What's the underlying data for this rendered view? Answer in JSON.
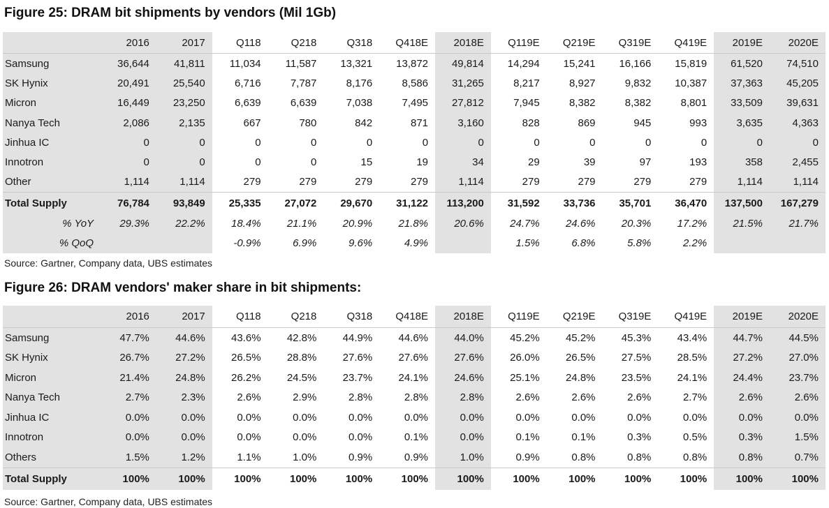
{
  "fig25": {
    "title": "Figure 25: DRAM bit shipments by vendors (Mil 1Gb)",
    "source": "Source: Gartner, Company data, UBS estimates",
    "headers": [
      "",
      "2016",
      "2017",
      "Q118",
      "Q218",
      "Q318",
      "Q418E",
      "2018E",
      "Q119E",
      "Q219E",
      "Q319E",
      "Q419E",
      "2019E",
      "2020E"
    ],
    "rows": [
      [
        "Samsung",
        "36,644",
        "41,811",
        "11,034",
        "11,587",
        "13,321",
        "13,872",
        "49,814",
        "14,294",
        "15,241",
        "16,166",
        "15,819",
        "61,520",
        "74,510"
      ],
      [
        "SK Hynix",
        "20,491",
        "25,540",
        "6,716",
        "7,787",
        "8,176",
        "8,586",
        "31,265",
        "8,217",
        "8,927",
        "9,832",
        "10,387",
        "37,363",
        "45,205"
      ],
      [
        "Micron",
        "16,449",
        "23,250",
        "6,639",
        "6,639",
        "7,038",
        "7,495",
        "27,812",
        "7,945",
        "8,382",
        "8,382",
        "8,801",
        "33,509",
        "39,631"
      ],
      [
        "Nanya Tech",
        "2,086",
        "2,135",
        "667",
        "780",
        "842",
        "871",
        "3,160",
        "828",
        "869",
        "945",
        "993",
        "3,635",
        "4,363"
      ],
      [
        "Jinhua IC",
        "0",
        "0",
        "0",
        "0",
        "0",
        "0",
        "0",
        "0",
        "0",
        "0",
        "0",
        "0",
        "0"
      ],
      [
        "Innotron",
        "0",
        "0",
        "0",
        "0",
        "15",
        "19",
        "34",
        "29",
        "39",
        "97",
        "193",
        "358",
        "2,455"
      ],
      [
        "Other",
        "1,114",
        "1,114",
        "279",
        "279",
        "279",
        "279",
        "1,114",
        "279",
        "279",
        "279",
        "279",
        "1,114",
        "1,114"
      ]
    ],
    "total": [
      "Total Supply",
      "76,784",
      "93,849",
      "25,335",
      "27,072",
      "29,670",
      "31,122",
      "113,200",
      "31,592",
      "33,736",
      "35,701",
      "36,470",
      "137,500",
      "167,279"
    ],
    "yoy": [
      "% YoY",
      "29.3%",
      "22.2%",
      "18.4%",
      "21.1%",
      "20.9%",
      "21.8%",
      "20.6%",
      "24.7%",
      "24.6%",
      "20.3%",
      "17.2%",
      "21.5%",
      "21.7%"
    ],
    "qoq": [
      "% QoQ",
      "",
      "",
      "-0.9%",
      "6.9%",
      "9.6%",
      "4.9%",
      "",
      "1.5%",
      "6.8%",
      "5.8%",
      "2.2%",
      "",
      ""
    ]
  },
  "fig26": {
    "title": "Figure 26: DRAM vendors' maker share in bit shipments:",
    "source": "Source: Gartner, Company data, UBS estimates",
    "headers": [
      "",
      "2016",
      "2017",
      "Q118",
      "Q218",
      "Q318",
      "Q418E",
      "2018E",
      "Q119E",
      "Q219E",
      "Q319E",
      "Q419E",
      "2019E",
      "2020E"
    ],
    "rows": [
      [
        "Samsung",
        "47.7%",
        "44.6%",
        "43.6%",
        "42.8%",
        "44.9%",
        "44.6%",
        "44.0%",
        "45.2%",
        "45.2%",
        "45.3%",
        "43.4%",
        "44.7%",
        "44.5%"
      ],
      [
        "SK Hynix",
        "26.7%",
        "27.2%",
        "26.5%",
        "28.8%",
        "27.6%",
        "27.6%",
        "27.6%",
        "26.0%",
        "26.5%",
        "27.5%",
        "28.5%",
        "27.2%",
        "27.0%"
      ],
      [
        "Micron",
        "21.4%",
        "24.8%",
        "26.2%",
        "24.5%",
        "23.7%",
        "24.1%",
        "24.6%",
        "25.1%",
        "24.8%",
        "23.5%",
        "24.1%",
        "24.4%",
        "23.7%"
      ],
      [
        "Nanya Tech",
        "2.7%",
        "2.3%",
        "2.6%",
        "2.9%",
        "2.8%",
        "2.8%",
        "2.8%",
        "2.6%",
        "2.6%",
        "2.6%",
        "2.7%",
        "2.6%",
        "2.6%"
      ],
      [
        "Jinhua IC",
        "0.0%",
        "0.0%",
        "0.0%",
        "0.0%",
        "0.0%",
        "0.0%",
        "0.0%",
        "0.0%",
        "0.0%",
        "0.0%",
        "0.0%",
        "0.0%",
        "0.0%"
      ],
      [
        "Innotron",
        "0.0%",
        "0.0%",
        "0.0%",
        "0.0%",
        "0.0%",
        "0.1%",
        "0.0%",
        "0.1%",
        "0.1%",
        "0.3%",
        "0.5%",
        "0.3%",
        "1.5%"
      ],
      [
        "Others",
        "1.5%",
        "1.2%",
        "1.1%",
        "1.0%",
        "0.9%",
        "0.9%",
        "1.0%",
        "0.9%",
        "0.8%",
        "0.8%",
        "0.8%",
        "0.8%",
        "0.7%"
      ]
    ],
    "total": [
      "Total Supply",
      "100%",
      "100%",
      "100%",
      "100%",
      "100%",
      "100%",
      "100%",
      "100%",
      "100%",
      "100%",
      "100%",
      "100%",
      "100%"
    ]
  },
  "shaded_columns": [
    0,
    1,
    2,
    7,
    12,
    13
  ],
  "colors": {
    "shade": "#e2e2e2",
    "rule": "#c9c9c9"
  }
}
